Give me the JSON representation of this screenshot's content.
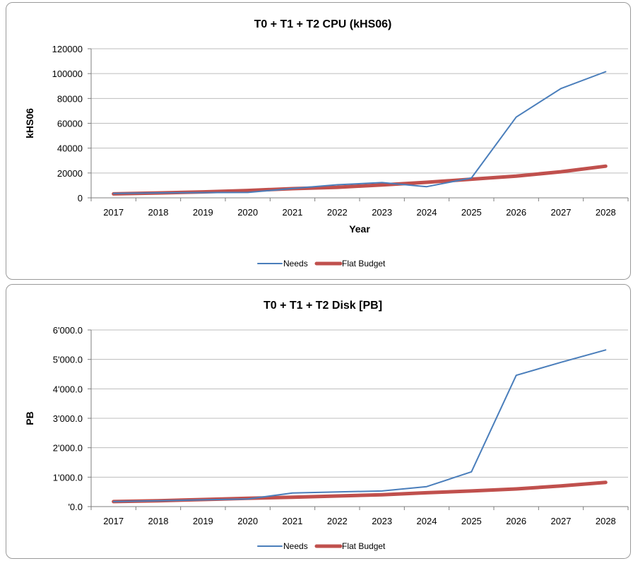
{
  "chart_data": [
    {
      "type": "line",
      "title": "T0 + T1 + T2 CPU (kHS06)",
      "xlabel": "Year",
      "ylabel": "kHS06",
      "categories": [
        "2017",
        "2018",
        "2019",
        "2020",
        "2021",
        "2022",
        "2023",
        "2024",
        "2025",
        "2026",
        "2027",
        "2028"
      ],
      "ylim": [
        0,
        120000
      ],
      "yticks": [
        "0",
        "20000",
        "40000",
        "60000",
        "80000",
        "100000",
        "120000"
      ],
      "grid": true,
      "legend": "bottom",
      "series": [
        {
          "name": "Needs",
          "color": "#4a7ebb",
          "values": [
            3500,
            4000,
            4200,
            4300,
            7500,
            10500,
            12300,
            9000,
            16000,
            65000,
            88000,
            101500
          ]
        },
        {
          "name": "Flat Budget",
          "color": "#c0504d",
          "values": [
            3200,
            3900,
            4800,
            5900,
            7400,
            8500,
            10400,
            12500,
            15000,
            17500,
            21000,
            25500
          ]
        }
      ]
    },
    {
      "type": "line",
      "title": "T0 + T1 + T2 Disk [PB]",
      "xlabel": "",
      "ylabel": "PB",
      "categories": [
        "2017",
        "2018",
        "2019",
        "2020",
        "2021",
        "2022",
        "2023",
        "2024",
        "2025",
        "2026",
        "2027",
        "2028"
      ],
      "ylim": [
        0,
        6000
      ],
      "yticks": [
        "'0.0",
        "1'000.0",
        "2'000.0",
        "3'000.0",
        "4'000.0",
        "5'000.0",
        "6'000.0"
      ],
      "grid": true,
      "legend": "bottom",
      "series": [
        {
          "name": "Needs",
          "color": "#4a7ebb",
          "values": [
            170,
            200,
            230,
            260,
            460,
            500,
            530,
            680,
            1180,
            4460,
            4900,
            5320
          ]
        },
        {
          "name": "Flat Budget",
          "color": "#c0504d",
          "values": [
            170,
            200,
            240,
            280,
            320,
            360,
            400,
            470,
            530,
            600,
            700,
            820
          ]
        }
      ]
    }
  ]
}
